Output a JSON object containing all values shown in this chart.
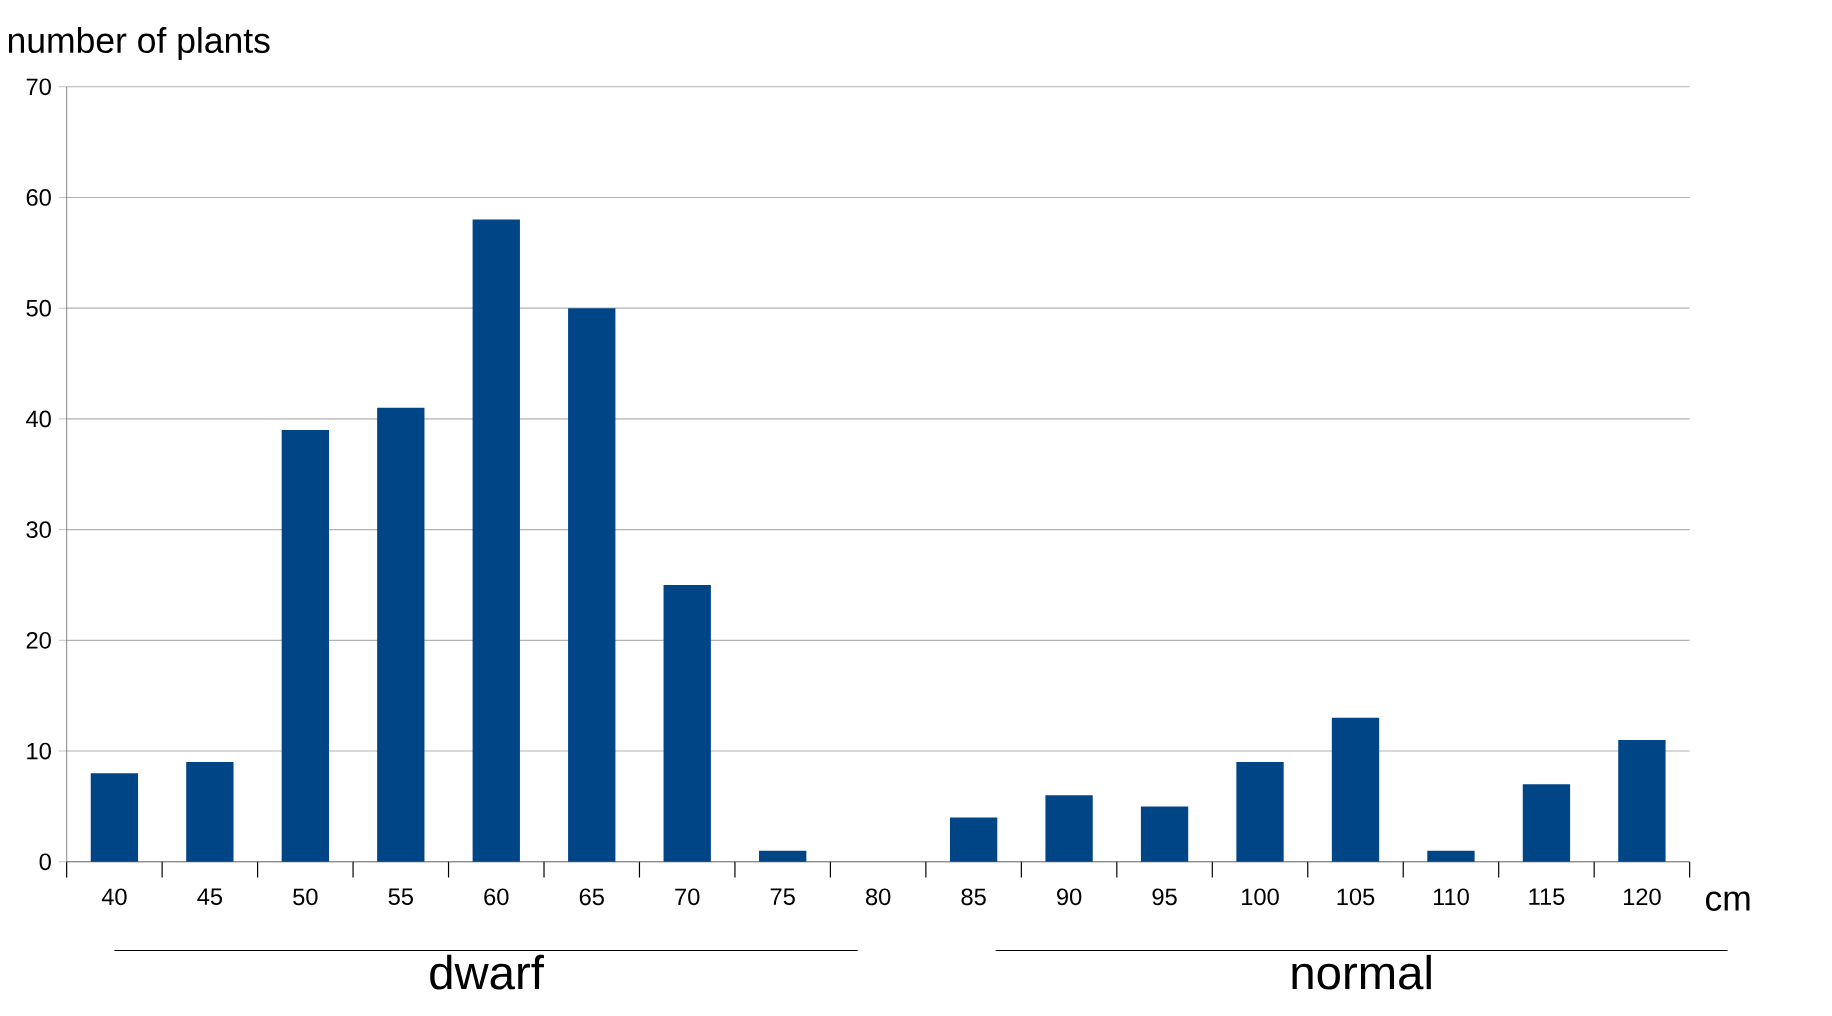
{
  "chart_data": {
    "type": "bar",
    "ylabel": "number of plants",
    "xlabel": "cm",
    "categories": [
      "40",
      "45",
      "50",
      "55",
      "60",
      "65",
      "70",
      "75",
      "80",
      "85",
      "90",
      "95",
      "100",
      "105",
      "110",
      "115",
      "120"
    ],
    "values": [
      8,
      9,
      39,
      41,
      58,
      50,
      25,
      1,
      0,
      4,
      6,
      5,
      9,
      13,
      1,
      7,
      11
    ],
    "color": "#004586",
    "ylim": [
      0,
      70
    ],
    "yticks": [
      0,
      10,
      20,
      30,
      40,
      50,
      60,
      70
    ],
    "grid": "y",
    "annotations": [
      "dwarf",
      "normal"
    ]
  }
}
